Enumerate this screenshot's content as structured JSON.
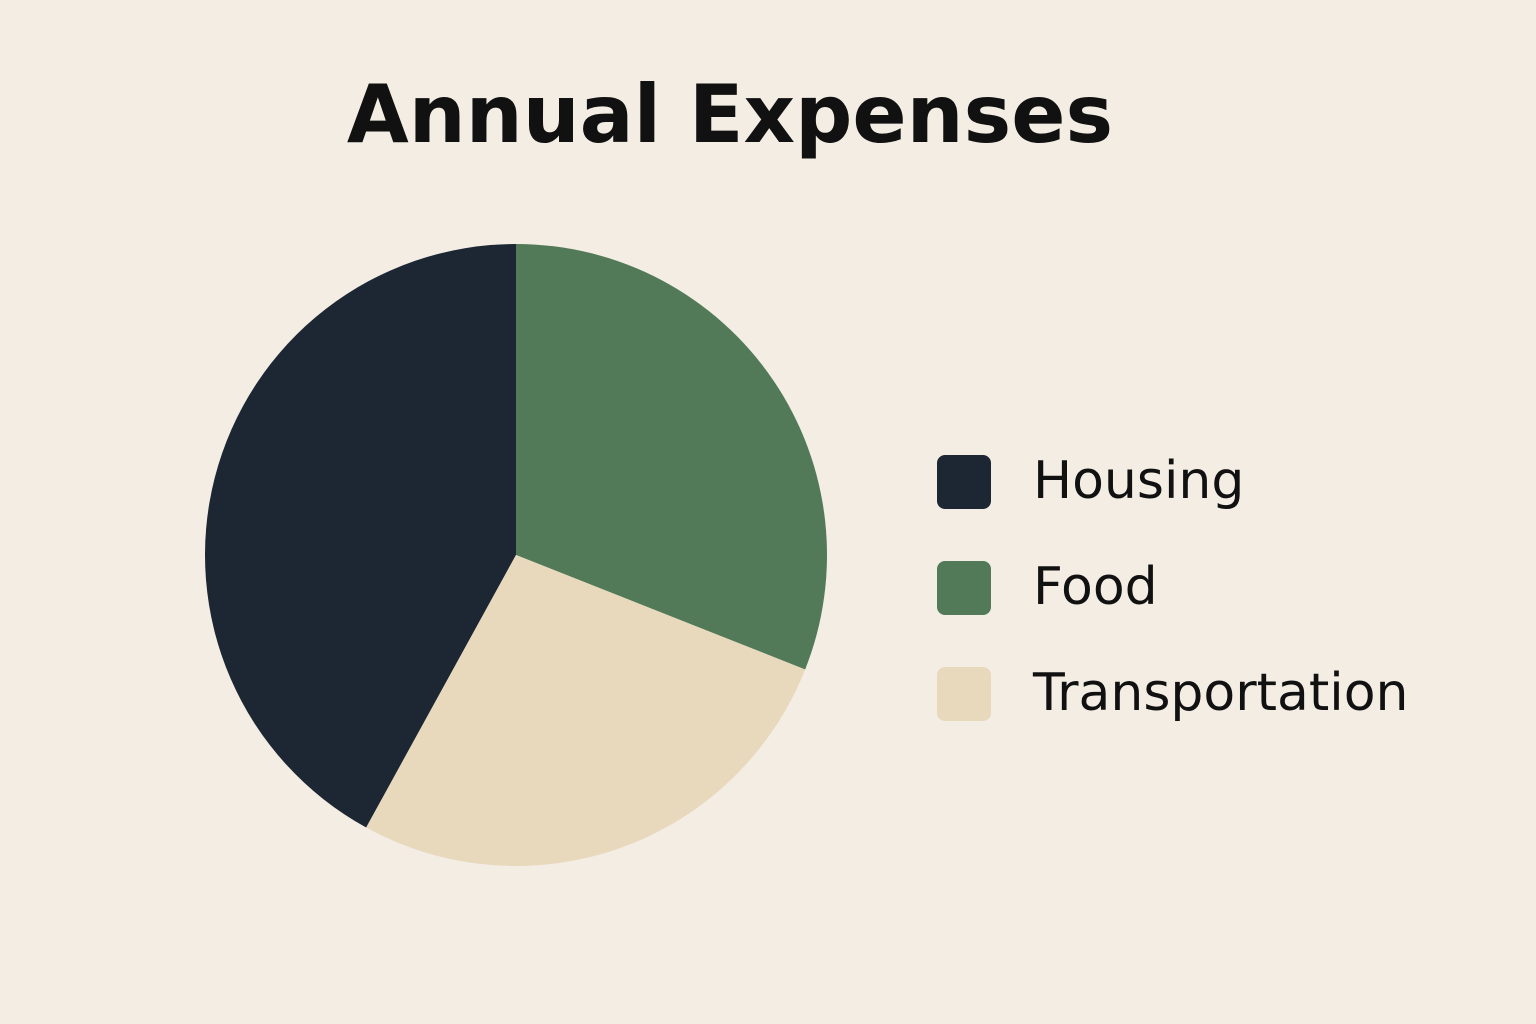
{
  "chart_data": {
    "type": "pie",
    "title": "Annual Expenses",
    "categories": [
      "Housing",
      "Food",
      "Transportation"
    ],
    "values": [
      42,
      31,
      27
    ],
    "colors": [
      "#1c2733",
      "#527a58",
      "#e8d9bd"
    ],
    "legend": "right"
  }
}
